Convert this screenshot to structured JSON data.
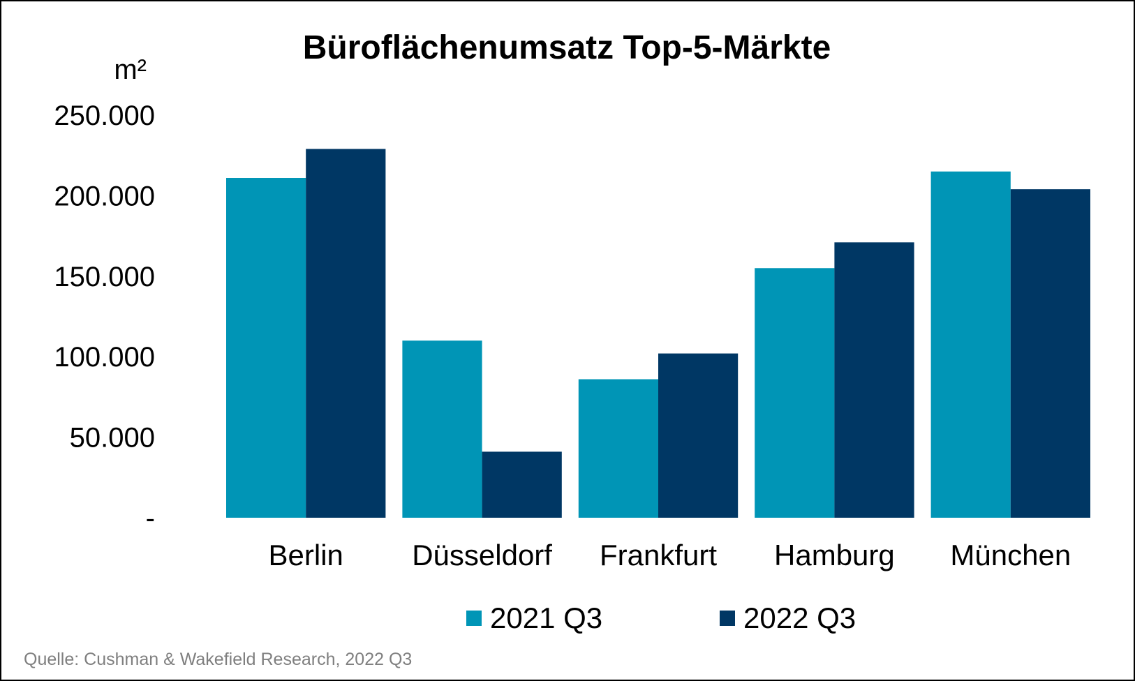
{
  "chart_data": {
    "type": "bar",
    "title": "Büroflächenumsatz Top-5-Märkte",
    "ylabel": "m²",
    "xlabel": "",
    "categories": [
      "Berlin",
      "Düsseldorf",
      "Frankfurt",
      "Hamburg",
      "München"
    ],
    "series": [
      {
        "name": "2021 Q3",
        "color": "#0095b6",
        "values": [
          211000,
          110000,
          86000,
          155000,
          215000
        ]
      },
      {
        "name": "2022 Q3",
        "color": "#003764",
        "values": [
          229000,
          41000,
          102000,
          171000,
          204000
        ]
      }
    ],
    "ylim": [
      0,
      250000
    ],
    "yticks": [
      0,
      50000,
      100000,
      150000,
      200000,
      250000
    ],
    "ytick_labels": [
      "-",
      "50.000",
      "100.000",
      "150.000",
      "200.000",
      "250.000"
    ],
    "grid": false,
    "legend_position": "bottom"
  },
  "source": "Quelle: Cushman & Wakefield Research, 2022 Q3"
}
